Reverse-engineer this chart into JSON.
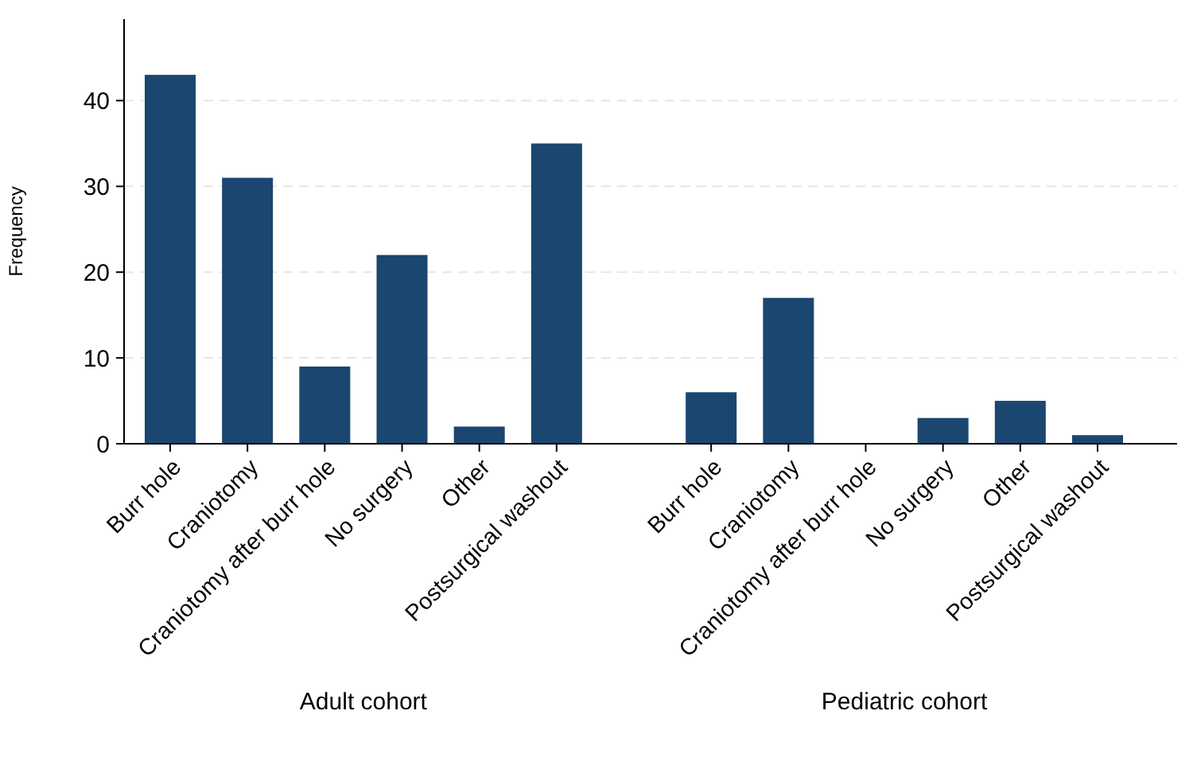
{
  "chart_data": {
    "type": "bar",
    "ylabel": "Frequency",
    "categories": [
      "Burr hole",
      "Craniotomy",
      "Craniotomy after burr hole",
      "No surgery",
      "Other",
      "Postsurgical washout",
      null,
      "Burr hole",
      "Craniotomy",
      "Craniotomy after burr hole",
      "No surgery",
      "Other",
      "Postsurgical washout"
    ],
    "values": [
      43,
      31,
      9,
      22,
      2,
      35,
      null,
      6,
      17,
      0,
      3,
      5,
      1
    ],
    "color": "#1a4670",
    "ylim": [
      0,
      49.5
    ],
    "yticks": [
      0,
      10,
      20,
      30,
      40
    ],
    "grid": "y",
    "annotations": [
      "Adult cohort",
      "Pediatric cohort"
    ]
  }
}
